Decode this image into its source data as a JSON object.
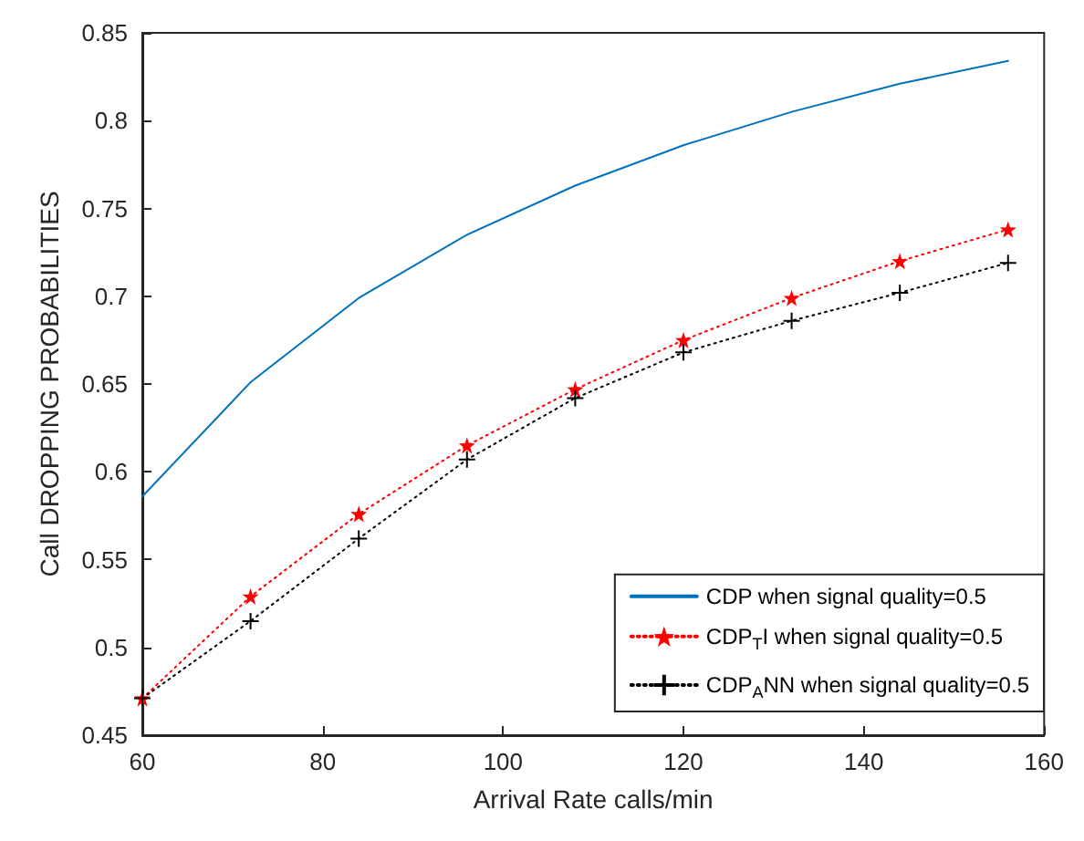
{
  "chart_data": {
    "type": "line",
    "xlabel": "Arrival Rate calls/min",
    "ylabel": "Call DROPPING PROBABILITIES",
    "x": [
      60,
      72,
      84,
      96,
      108,
      120,
      132,
      144,
      156
    ],
    "series": [
      {
        "name": "CDP when signal quality=0.5",
        "color": "#0072bd",
        "marker": "none",
        "line_style": "solid",
        "values": [
          0.586,
          0.651,
          0.699,
          0.735,
          0.763,
          0.786,
          0.805,
          0.821,
          0.834
        ]
      },
      {
        "name": "CDP$_{T}$I when signal quality=0.5",
        "color": "#ff0000",
        "marker": "star",
        "line_style": "dotted",
        "values": [
          0.471,
          0.529,
          0.576,
          0.615,
          0.647,
          0.675,
          0.699,
          0.72,
          0.738
        ]
      },
      {
        "name": "CDP$_{A}$NN when signal quality=0.5",
        "color": "#000000",
        "marker": "cross",
        "line_style": "dotted",
        "values": [
          0.471,
          0.515,
          0.562,
          0.607,
          0.642,
          0.668,
          0.686,
          0.702,
          0.719
        ]
      }
    ],
    "xlim": [
      60,
      160
    ],
    "xticks": [
      60,
      80,
      100,
      120,
      140,
      160
    ],
    "ylim": [
      0.45,
      0.85
    ],
    "yticks": [
      0.45,
      0.5,
      0.55,
      0.6,
      0.65,
      0.7,
      0.75,
      0.8,
      0.85
    ],
    "grid": false,
    "legend": "bottom right"
  }
}
